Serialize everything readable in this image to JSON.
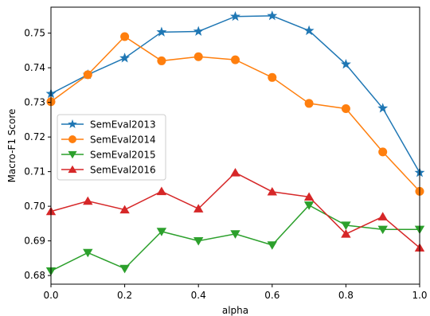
{
  "chart_data": {
    "type": "line",
    "title": "",
    "xlabel": "alpha",
    "ylabel": "Macro-F1 Score",
    "xlim": [
      0.0,
      1.0
    ],
    "ylim": [
      0.6775,
      0.7575
    ],
    "x": [
      0.0,
      0.1,
      0.2,
      0.3,
      0.4,
      0.5,
      0.6,
      0.7,
      0.8,
      0.9,
      1.0
    ],
    "xticks": [
      0.0,
      0.2,
      0.4,
      0.6,
      0.8,
      1.0
    ],
    "xtick_labels": [
      "0.0",
      "0.2",
      "0.4",
      "0.6",
      "0.8",
      "1.0"
    ],
    "yticks": [
      0.68,
      0.69,
      0.7,
      0.71,
      0.72,
      0.73,
      0.74,
      0.75
    ],
    "ytick_labels": [
      "0.68",
      "0.69",
      "0.70",
      "0.71",
      "0.72",
      "0.73",
      "0.74",
      "0.75"
    ],
    "grid": false,
    "legend_position": "center-left",
    "series": [
      {
        "name": "SemEval2013",
        "color": "#1f77b4",
        "marker": "star",
        "values": [
          0.7325,
          0.738,
          0.7428,
          0.7503,
          0.7505,
          0.7548,
          0.755,
          0.7507,
          0.741,
          0.7283,
          0.7097
        ]
      },
      {
        "name": "SemEval2014",
        "color": "#ff7f0e",
        "marker": "circle",
        "values": [
          0.7302,
          0.738,
          0.749,
          0.742,
          0.7432,
          0.7423,
          0.7372,
          0.7297,
          0.7282,
          0.7157,
          0.7043
        ]
      },
      {
        "name": "SemEval2015",
        "color": "#2ca02c",
        "marker": "triangle-down",
        "values": [
          0.6813,
          0.6866,
          0.682,
          0.6927,
          0.69,
          0.692,
          0.6888,
          0.7003,
          0.6945,
          0.6933,
          0.6933
        ]
      },
      {
        "name": "SemEval2016",
        "color": "#d62728",
        "marker": "triangle-up",
        "values": [
          0.6985,
          0.7015,
          0.699,
          0.7043,
          0.6993,
          0.7097,
          0.7042,
          0.7027,
          0.692,
          0.697,
          0.688
        ]
      }
    ]
  }
}
